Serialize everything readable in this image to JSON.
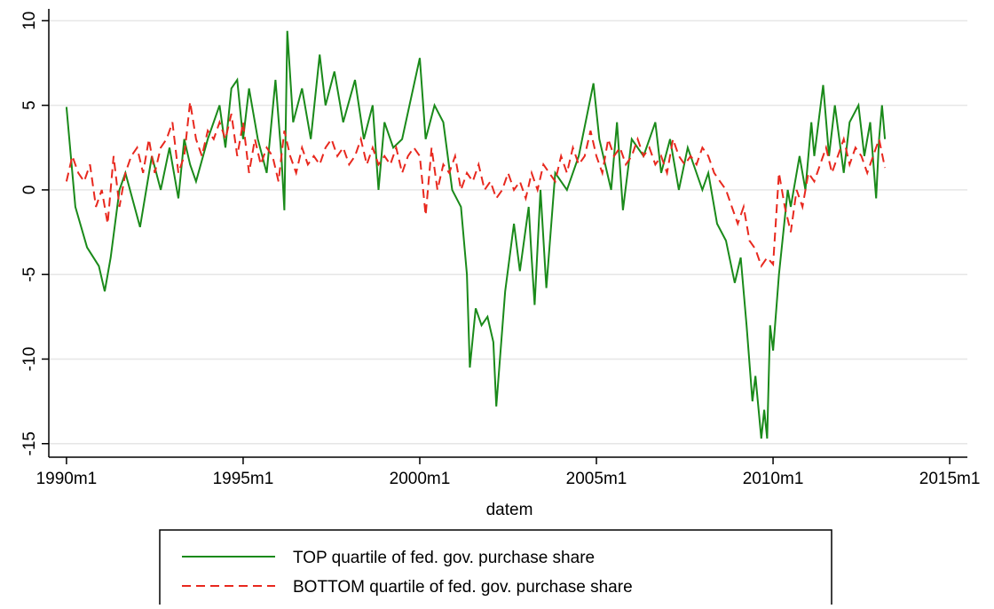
{
  "chart_data": {
    "type": "line",
    "xlabel": "datem",
    "xlim": [
      354,
      666
    ],
    "ylim": [
      -15.8,
      10.7
    ],
    "xticks": [
      {
        "value": 360,
        "label": "1990m1"
      },
      {
        "value": 420,
        "label": "1995m1"
      },
      {
        "value": 480,
        "label": "2000m1"
      },
      {
        "value": 540,
        "label": "2005m1"
      },
      {
        "value": 600,
        "label": "2010m1"
      },
      {
        "value": 660,
        "label": "2015m1"
      }
    ],
    "yticks": [
      -15,
      -10,
      -5,
      0,
      5,
      10
    ],
    "grid": true,
    "series": [
      {
        "name": "TOP quartile of fed. gov. purchase share",
        "color": "#1a8a1a",
        "dash": "solid",
        "x": [
          360,
          363,
          367,
          371,
          373,
          375,
          378,
          380,
          385,
          389,
          392,
          395,
          398,
          400,
          402,
          404,
          408,
          412,
          414,
          416,
          418,
          420,
          422,
          425,
          428,
          431,
          433,
          434,
          435,
          437,
          440,
          443,
          446,
          448,
          451,
          454,
          458,
          461,
          464,
          466,
          468,
          471,
          474,
          480,
          482,
          485,
          488,
          491,
          494,
          496,
          497,
          499,
          501,
          503,
          505,
          506,
          509,
          512,
          514,
          517,
          518,
          519,
          521,
          523,
          526,
          530,
          534,
          539,
          541,
          545,
          547,
          549,
          552,
          556,
          560,
          562,
          565,
          568,
          571,
          576,
          578,
          581,
          584,
          587,
          589,
          591,
          593,
          594,
          596,
          597,
          598,
          599,
          600,
          602,
          605,
          606,
          609,
          611,
          613,
          614,
          617,
          619,
          621,
          624,
          626,
          629,
          631,
          633,
          635,
          636,
          637,
          638
        ],
        "values": [
          4.9,
          -1,
          -3.4,
          -4.5,
          -6,
          -4,
          0,
          1,
          -2.2,
          2,
          0,
          2.5,
          -0.5,
          3,
          1.5,
          0.5,
          3,
          5,
          2.5,
          6,
          6.5,
          3,
          6,
          3,
          1,
          6.5,
          2,
          -1.2,
          9.4,
          4,
          6,
          3,
          8,
          5,
          7,
          4,
          6.5,
          3,
          5,
          0,
          4,
          2.5,
          3,
          7.8,
          3,
          5,
          4,
          0,
          -1,
          -5,
          -10.5,
          -7,
          -8,
          -7.5,
          -9,
          -12.8,
          -6,
          -2,
          -4.8,
          -1,
          -4,
          -6.8,
          0,
          -5.8,
          1,
          0,
          2,
          6.3,
          3,
          0,
          4,
          -1.2,
          3,
          2,
          4,
          1,
          3,
          0,
          2.5,
          0,
          1,
          -2,
          -3,
          -5.5,
          -4,
          -8,
          -12.5,
          -11,
          -14.7,
          -13,
          -14.7,
          -8,
          -9.5,
          -5,
          0,
          -1,
          2,
          0,
          4,
          2,
          6.2,
          2,
          5,
          1,
          4,
          5,
          2,
          4,
          -0.5,
          3,
          5,
          3
        ]
      },
      {
        "name": "BOTTOM quartile of fed. gov. purchase share",
        "color": "#e8281e",
        "dash": "dashed",
        "x": [
          360,
          362,
          364,
          366,
          368,
          370,
          372,
          374,
          376,
          378,
          380,
          382,
          384,
          386,
          388,
          390,
          392,
          394,
          396,
          398,
          400,
          402,
          404,
          406,
          408,
          410,
          412,
          414,
          416,
          418,
          420,
          422,
          424,
          426,
          428,
          430,
          432,
          434,
          436,
          438,
          440,
          442,
          444,
          446,
          448,
          450,
          452,
          454,
          456,
          458,
          460,
          462,
          464,
          466,
          468,
          470,
          472,
          474,
          476,
          478,
          480,
          482,
          484,
          486,
          488,
          490,
          492,
          494,
          496,
          498,
          500,
          502,
          504,
          506,
          508,
          510,
          512,
          514,
          516,
          518,
          520,
          522,
          524,
          526,
          528,
          530,
          532,
          534,
          536,
          538,
          540,
          542,
          544,
          546,
          548,
          550,
          552,
          554,
          556,
          558,
          560,
          562,
          564,
          566,
          568,
          570,
          572,
          574,
          576,
          578,
          580,
          582,
          584,
          586,
          588,
          590,
          592,
          594,
          596,
          598,
          600,
          602,
          604,
          606,
          608,
          610,
          612,
          614,
          616,
          618,
          620,
          622,
          624,
          626,
          628,
          630,
          632,
          634,
          636,
          638
        ],
        "values": [
          0.5,
          2,
          1,
          0.5,
          1.5,
          -1,
          0,
          -2,
          2,
          -1,
          1,
          2,
          2.5,
          1,
          3,
          1,
          2.5,
          3,
          4,
          1,
          2,
          5.2,
          3,
          2,
          3.5,
          3,
          4,
          3,
          4.5,
          2,
          4,
          1,
          3,
          1.5,
          2.5,
          2,
          0.5,
          3.5,
          2,
          1,
          2.5,
          1.5,
          2,
          1.5,
          2.5,
          3,
          2,
          2.5,
          1.5,
          2,
          3,
          1.5,
          2.5,
          1.5,
          2,
          1.5,
          2.5,
          1,
          2,
          2.5,
          2,
          -1.5,
          2.5,
          0,
          1.5,
          1,
          2,
          0,
          1,
          0.5,
          1.5,
          0,
          0.5,
          -0.5,
          0,
          1,
          0,
          0.5,
          -0.5,
          1,
          0,
          1.5,
          1,
          0.5,
          2,
          1,
          2.5,
          1.5,
          2,
          3.5,
          2,
          1,
          3,
          2,
          2.5,
          1.5,
          2,
          3,
          2,
          2.5,
          1.5,
          2,
          1,
          3,
          2,
          1.5,
          2,
          1.5,
          2.5,
          2,
          1,
          0.5,
          0,
          -1,
          -2,
          -1,
          -3,
          -3.5,
          -4.5,
          -4,
          -4.4,
          1,
          -1,
          -2.5,
          0,
          -1,
          1,
          0.5,
          1.5,
          2.5,
          1,
          2,
          3,
          1.5,
          2.5,
          2,
          1,
          2,
          3,
          1.3
        ]
      }
    ]
  }
}
